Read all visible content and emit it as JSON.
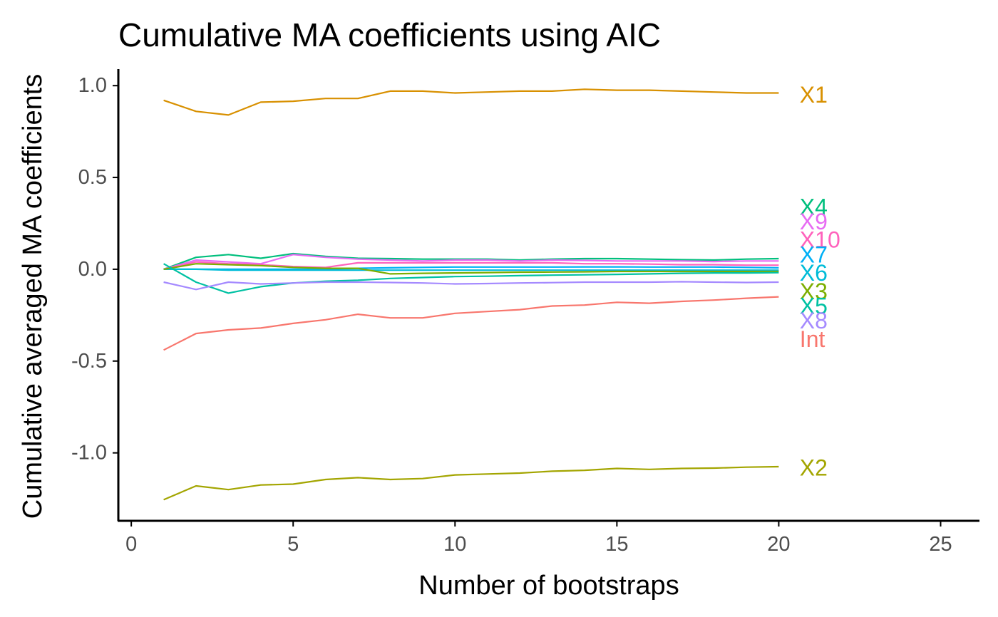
{
  "chart_data": {
    "type": "line",
    "title": "Cumulative MA coefficients using  AIC",
    "xlabel": "Number of bootstraps",
    "ylabel": "Cumulative averaged MA coefficients",
    "xlim": [
      -0.4,
      26.2
    ],
    "ylim": [
      -1.37,
      1.09
    ],
    "xticks": [
      0,
      5,
      10,
      15,
      20,
      25
    ],
    "xtick_labels": [
      "0",
      "5",
      "10",
      "15",
      "20",
      "25"
    ],
    "yticks": [
      1.0,
      0.5,
      0.0,
      -0.5,
      -1.0
    ],
    "ytick_labels": [
      "1.0",
      "0.5",
      "0.0",
      "-0.5",
      "-1.0"
    ],
    "grid": false,
    "legend": "direct labels at x = 21",
    "x": [
      1,
      2,
      3,
      4,
      5,
      6,
      7,
      8,
      9,
      10,
      11,
      12,
      13,
      14,
      15,
      16,
      17,
      18,
      19,
      20
    ],
    "series": [
      {
        "name": "X1",
        "color": "#D89000",
        "label_y": 0.95,
        "values": [
          0.92,
          0.86,
          0.84,
          0.91,
          0.915,
          0.93,
          0.93,
          0.97,
          0.97,
          0.96,
          0.965,
          0.97,
          0.97,
          0.98,
          0.975,
          0.975,
          0.97,
          0.965,
          0.96,
          0.96
        ]
      },
      {
        "name": "X4",
        "color": "#00BF7D",
        "label_y": 0.34,
        "values": [
          0.0,
          0.065,
          0.08,
          0.06,
          0.085,
          0.07,
          0.06,
          0.058,
          0.055,
          0.055,
          0.055,
          0.05,
          0.055,
          0.058,
          0.058,
          0.055,
          0.052,
          0.05,
          0.055,
          0.058
        ]
      },
      {
        "name": "X9",
        "color": "#E76BF3",
        "label_y": 0.26,
        "values": [
          0.0,
          0.05,
          0.04,
          0.03,
          0.08,
          0.065,
          0.055,
          0.05,
          0.045,
          0.05,
          0.05,
          0.045,
          0.05,
          0.048,
          0.045,
          0.045,
          0.045,
          0.042,
          0.045,
          0.045
        ]
      },
      {
        "name": "X10",
        "color": "#FF62BC",
        "label_y": 0.16,
        "values": [
          0.0,
          0.04,
          0.03,
          0.025,
          0.015,
          0.01,
          0.035,
          0.035,
          0.035,
          0.035,
          0.035,
          0.035,
          0.035,
          0.03,
          0.03,
          0.028,
          0.025,
          0.025,
          0.022,
          0.022
        ]
      },
      {
        "name": "X7",
        "color": "#00B0F6",
        "label_y": 0.08,
        "values": [
          0.0,
          0.0,
          0.0,
          0.0,
          0.0,
          0.0,
          0.005,
          0.008,
          0.01,
          0.012,
          0.012,
          0.012,
          0.012,
          0.013,
          0.013,
          0.012,
          0.012,
          0.012,
          0.01,
          0.008
        ]
      },
      {
        "name": "X6",
        "color": "#00BCD8",
        "label_y": -0.02,
        "values": [
          0.0,
          0.0,
          -0.005,
          -0.005,
          -0.005,
          -0.005,
          -0.005,
          -0.005,
          -0.005,
          -0.005,
          -0.005,
          -0.005,
          -0.005,
          -0.005,
          -0.005,
          -0.005,
          -0.005,
          -0.005,
          -0.005,
          -0.005
        ]
      },
      {
        "name": "X3",
        "color": "#7CAE00",
        "label_y": -0.12,
        "values": [
          0.0,
          0.03,
          0.025,
          0.02,
          0.01,
          0.005,
          0.005,
          -0.025,
          -0.022,
          -0.02,
          -0.018,
          -0.016,
          -0.015,
          -0.014,
          -0.012,
          -0.012,
          -0.012,
          -0.012,
          -0.012,
          -0.012
        ]
      },
      {
        "name": "X5",
        "color": "#00C1A3",
        "label_y": -0.2,
        "values": [
          0.03,
          -0.07,
          -0.13,
          -0.095,
          -0.075,
          -0.065,
          -0.06,
          -0.05,
          -0.045,
          -0.04,
          -0.038,
          -0.035,
          -0.032,
          -0.03,
          -0.028,
          -0.025,
          -0.022,
          -0.02,
          -0.02,
          -0.018
        ]
      },
      {
        "name": "X8",
        "color": "#A58AFF",
        "label_y": -0.28,
        "values": [
          -0.07,
          -0.11,
          -0.07,
          -0.08,
          -0.075,
          -0.07,
          -0.07,
          -0.072,
          -0.075,
          -0.08,
          -0.078,
          -0.075,
          -0.073,
          -0.07,
          -0.07,
          -0.07,
          -0.068,
          -0.07,
          -0.072,
          -0.07
        ]
      },
      {
        "name": "Int",
        "color": "#F8766D",
        "label_y": -0.38,
        "values": [
          -0.44,
          -0.35,
          -0.33,
          -0.32,
          -0.295,
          -0.275,
          -0.245,
          -0.265,
          -0.265,
          -0.24,
          -0.23,
          -0.22,
          -0.2,
          -0.195,
          -0.18,
          -0.185,
          -0.175,
          -0.168,
          -0.158,
          -0.15
        ]
      },
      {
        "name": "X2",
        "color": "#A3A500",
        "label_y": -1.08,
        "values": [
          -1.255,
          -1.18,
          -1.2,
          -1.175,
          -1.17,
          -1.145,
          -1.135,
          -1.145,
          -1.14,
          -1.12,
          -1.115,
          -1.11,
          -1.1,
          -1.095,
          -1.085,
          -1.09,
          -1.085,
          -1.083,
          -1.078,
          -1.075
        ]
      }
    ]
  }
}
